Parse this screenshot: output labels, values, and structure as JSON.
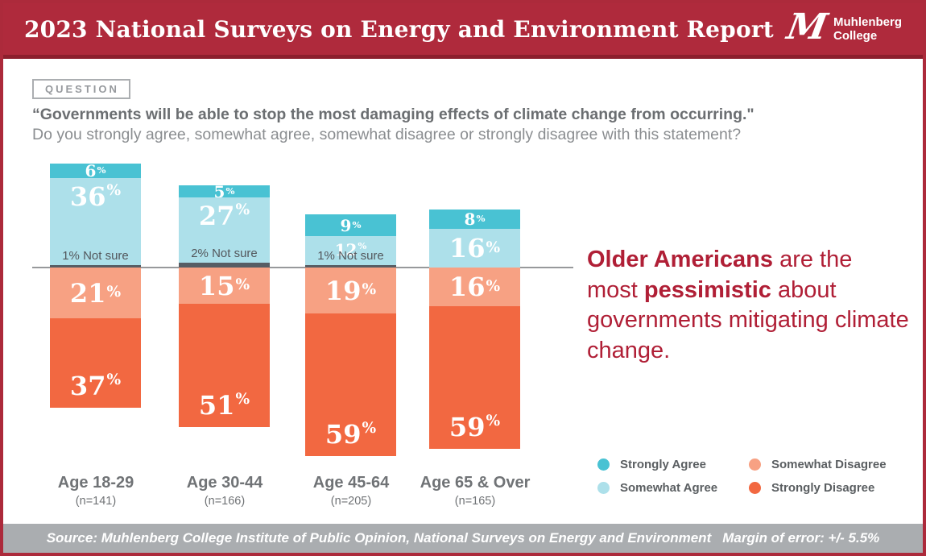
{
  "header": {
    "title": "2023 National Surveys on Energy and Environment Report",
    "logo": {
      "mark": "M",
      "line1": "Muhlenberg",
      "line2": "College"
    }
  },
  "question": {
    "tag": "QUESTION",
    "line1": "“Governments will be able to stop the most damaging effects of climate change from occurring.\"",
    "line2": "Do you strongly agree, somewhat agree, somewhat disagree or strongly disagree with this statement?"
  },
  "annotation": {
    "segments": [
      {
        "text": "Older Americans",
        "bold": true
      },
      {
        "text": " are the most ",
        "bold": false
      },
      {
        "text": "pessimistic",
        "bold": true
      },
      {
        "text": " about governments mitigating climate change.",
        "bold": false
      }
    ]
  },
  "legend": {
    "items": [
      {
        "label": "Strongly Agree",
        "color_key": "strongly_agree"
      },
      {
        "label": "Somewhat Agree",
        "color_key": "somewhat_agree"
      },
      {
        "label": "Somewhat Disagree",
        "color_key": "somewhat_disagree"
      },
      {
        "label": "Strongly Disagree",
        "color_key": "strongly_disagree"
      }
    ]
  },
  "footer": {
    "source": "Source: Muhlenberg College Institute of Public Opinion, National Surveys on Energy and Environment",
    "margin": "Margin of error: +/- 5.5%"
  },
  "colors": {
    "strongly_agree": "#49C2D3",
    "somewhat_agree": "#ADE0EA",
    "not_sure": "#575D64",
    "somewhat_disagree": "#F7A183",
    "strongly_disagree": "#F26841",
    "axis": "#97999B",
    "header": "#AF2A3C",
    "accent_red": "#B01F36",
    "footer_gray": "#AAADB0"
  },
  "chart_data": {
    "type": "diverging-stacked-bar",
    "title": "",
    "categories": [
      "Age 18-29",
      "Age 30-44",
      "Age 45-64",
      "Age 65 & Over"
    ],
    "sample_sizes": [
      "(n=141)",
      "(n=166)",
      "(n=205)",
      "(n=165)"
    ],
    "series": [
      {
        "name": "Strongly Agree",
        "values": [
          6,
          5,
          9,
          8
        ]
      },
      {
        "name": "Somewhat Agree",
        "values": [
          36,
          27,
          12,
          16
        ]
      },
      {
        "name": "Not sure",
        "values": [
          1,
          2,
          1,
          0
        ]
      },
      {
        "name": "Somewhat Disagree",
        "values": [
          21,
          15,
          19,
          16
        ]
      },
      {
        "name": "Strongly Disagree",
        "values": [
          37,
          51,
          59,
          59
        ]
      }
    ],
    "not_sure_labels": [
      "1% Not sure",
      "2% Not sure",
      "1% Not sure",
      ""
    ],
    "layout": "agree stacked above zero line, disagree below; values are percents"
  }
}
